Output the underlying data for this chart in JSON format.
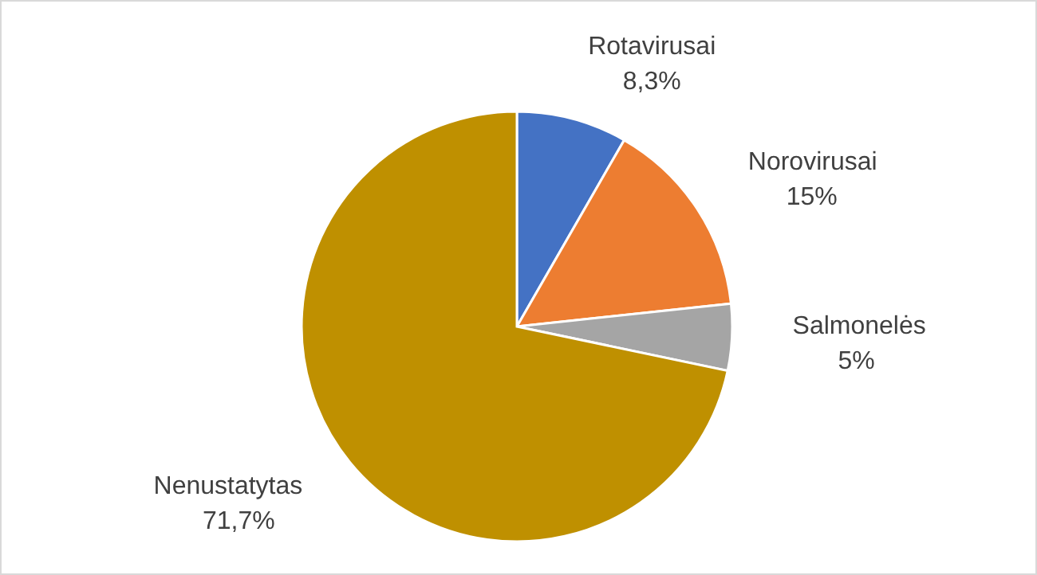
{
  "chart_data": {
    "type": "pie",
    "categories": [
      "Rotavirusai",
      "Norovirusai",
      "Salmonelės",
      "Nenustatytas"
    ],
    "values": [
      8.3,
      15,
      5,
      71.7
    ],
    "value_labels": [
      "8,3%",
      "15%",
      "5%",
      "71,7%"
    ],
    "colors": [
      "#4472c4",
      "#ed7d31",
      "#a5a5a5",
      "#bf9000"
    ]
  }
}
